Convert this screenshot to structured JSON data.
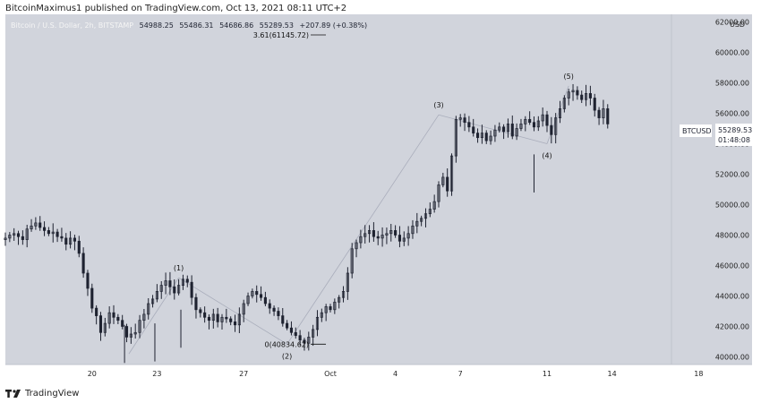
{
  "header": {
    "publisher": "BitcoinMaximus1 published on TradingView.com, Oct 13, 2021 08:11 UTC+2"
  },
  "symbol_bar": {
    "symbol": "Bitcoin / U.S. Dollar, 2h, BITSTAMP",
    "open": "54988.25",
    "high": "55486.31",
    "low": "54686.86",
    "close": "55289.53",
    "change": "+207.89 (+0.38%)"
  },
  "price_tag": {
    "ticker": "BTCUSD",
    "price": "55289.53",
    "countdown": "01:48:08"
  },
  "currency_label": "USD",
  "footer": {
    "brand": "TradingView",
    "logo_icon": "tradingview-logo-icon"
  },
  "colors": {
    "background": "#d1d4dc",
    "candle": "#1e2230",
    "wave_line": "#a9adbb",
    "axis_text": "#222222",
    "price_tag_bg": "#ffffff"
  },
  "chart_data": {
    "type": "candlestick",
    "x_ticks": [
      "20",
      "23",
      "27",
      "Oct",
      "4",
      "7",
      "11",
      "14",
      "18"
    ],
    "y_ticks": [
      "40000.00",
      "42000.00",
      "44000.00",
      "46000.00",
      "48000.00",
      "50000.00",
      "52000.00",
      "54000.00",
      "56000.00",
      "58000.00",
      "60000.00",
      "62000.00"
    ],
    "ylim": [
      39500,
      62500
    ],
    "grid": false,
    "waves": [
      {
        "label": "(1)",
        "date": "Sep 24",
        "price": 45200
      },
      {
        "label": "(2)",
        "date": "Sep 29",
        "price": 40834.62
      },
      {
        "label": "(3)",
        "date": "Oct 6",
        "price": 55900
      },
      {
        "label": "(4)",
        "date": "Oct 11",
        "price": 54000
      },
      {
        "label": "(5)",
        "date": "Oct 12",
        "price": 57800
      }
    ],
    "fib_levels": [
      {
        "label": "0(40834.62)",
        "price": 40834.62
      },
      {
        "label": "3.61(61145.72)",
        "price": 61145.72
      }
    ],
    "price_series": [
      47800,
      48000,
      48100,
      47900,
      47700,
      48400,
      48600,
      48800,
      48500,
      48300,
      48100,
      48200,
      47900,
      47800,
      47400,
      47800,
      47600,
      46800,
      45500,
      44500,
      43200,
      42700,
      41600,
      42200,
      42900,
      42600,
      42400,
      42000,
      41300,
      41500,
      41600,
      42400,
      42800,
      43500,
      43800,
      44300,
      44700,
      45000,
      44600,
      44200,
      44700,
      45100,
      44900,
      43900,
      43100,
      42900,
      42600,
      42400,
      42800,
      42300,
      42600,
      42500,
      42300,
      42100,
      42800,
      43500,
      44000,
      44300,
      44100,
      43900,
      43500,
      43200,
      43000,
      42700,
      42200,
      41900,
      41600,
      41400,
      41100,
      40900,
      41300,
      41800,
      42600,
      42900,
      43300,
      43100,
      43600,
      43900,
      44300,
      45500,
      47100,
      47500,
      47900,
      48100,
      48300,
      47900,
      47800,
      48000,
      48100,
      48300,
      48000,
      47600,
      47800,
      48100,
      48600,
      48900,
      49100,
      49400,
      49700,
      50200,
      51300,
      51800,
      50900,
      53200,
      55600,
      55700,
      55400,
      55100,
      54700,
      54400,
      54700,
      54200,
      54500,
      54900,
      55100,
      54800,
      55300,
      54500,
      55000,
      55300,
      55600,
      55400,
      55100,
      55500,
      55900,
      55200,
      54600,
      55700,
      56300,
      57000,
      57400,
      57500,
      57200,
      56900,
      57300,
      57000,
      56200,
      55700,
      56300,
      55300
    ]
  }
}
